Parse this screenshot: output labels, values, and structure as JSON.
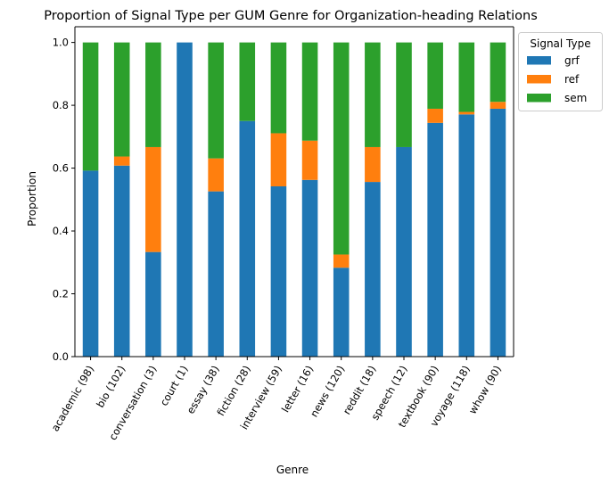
{
  "chart_data": {
    "type": "bar",
    "stacked": true,
    "title": "Proportion of Signal Type per GUM Genre for Organization-heading Relations",
    "xlabel": "Genre",
    "ylabel": "Proportion",
    "ylim": [
      0,
      1.05
    ],
    "yticks": [
      "0.0",
      "0.2",
      "0.4",
      "0.6",
      "0.8",
      "1.0"
    ],
    "categories": [
      "academic (98)",
      "bio (102)",
      "conversation (3)",
      "court (1)",
      "essay (38)",
      "fiction (28)",
      "interview (59)",
      "letter (16)",
      "news (120)",
      "reddit (18)",
      "speech (12)",
      "textbook (90)",
      "voyage (118)",
      "whow (90)"
    ],
    "series": [
      {
        "name": "grf",
        "color": "#1f77b4",
        "values": [
          0.592,
          0.608,
          0.333,
          1.0,
          0.526,
          0.75,
          0.542,
          0.5625,
          0.283,
          0.556,
          0.667,
          0.744,
          0.771,
          0.789
        ]
      },
      {
        "name": "ref",
        "color": "#ff7f0e",
        "values": [
          0.0,
          0.029,
          0.334,
          0.0,
          0.105,
          0.0,
          0.169,
          0.125,
          0.042,
          0.111,
          0.0,
          0.045,
          0.008,
          0.022
        ]
      },
      {
        "name": "sem",
        "color": "#2ca02c",
        "values": [
          0.408,
          0.363,
          0.333,
          0.0,
          0.369,
          0.25,
          0.289,
          0.3125,
          0.675,
          0.333,
          0.333,
          0.211,
          0.221,
          0.189
        ]
      }
    ],
    "legend": {
      "title": "Signal Type",
      "placement": "outside-upper-right"
    },
    "grid": false
  }
}
